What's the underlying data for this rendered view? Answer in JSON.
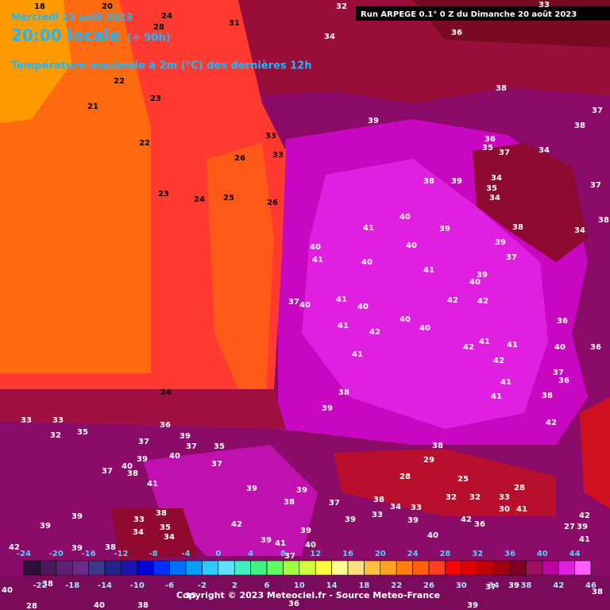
{
  "header": {
    "date": "Mercredi 23 août 2023",
    "time": "20:00 locale",
    "lead": "(+ 90h)",
    "subtitle": "Température maximale à 2m (°C) des dernières 12h",
    "run": "Run ARPEGE 0.1° 0 Z du Dimanche 20 août 2023"
  },
  "map_labels": [
    18,
    20,
    24,
    28,
    31,
    32,
    34,
    36,
    33,
    22,
    21,
    23,
    22,
    23,
    24,
    25,
    26,
    33,
    33,
    26,
    39,
    38,
    38,
    37,
    36,
    35,
    37,
    34,
    34,
    35,
    34,
    38,
    39,
    40,
    41,
    40,
    39,
    39,
    38,
    37,
    34,
    38,
    37,
    40,
    41,
    40,
    41,
    40,
    39,
    42,
    42,
    41,
    40,
    41,
    42,
    40,
    40,
    42,
    41,
    41,
    40,
    36,
    42,
    41,
    41,
    41,
    38,
    36,
    37,
    36,
    42,
    38,
    39,
    24,
    37,
    33,
    33,
    32,
    35,
    36,
    39,
    37,
    37,
    35,
    40,
    39,
    37,
    40,
    38,
    41,
    37,
    38,
    29,
    28,
    25,
    39,
    39,
    38,
    37,
    38,
    34,
    33,
    32,
    32,
    33,
    28,
    39,
    33,
    38,
    35,
    34,
    34,
    42,
    39,
    33,
    39,
    42,
    36,
    30,
    41,
    27,
    42,
    39,
    39,
    40,
    39,
    41,
    42,
    39,
    39,
    38,
    37,
    40,
    41,
    40,
    38,
    40,
    38,
    35,
    36,
    39,
    37,
    39,
    38,
    28,
    40
  ],
  "legend": {
    "ticks": [
      -24,
      -22,
      -20,
      -18,
      -16,
      -14,
      -12,
      -10,
      -8,
      -6,
      -4,
      -2,
      0,
      2,
      4,
      6,
      8,
      10,
      12,
      14,
      16,
      18,
      20,
      22,
      24,
      26,
      28,
      30,
      32,
      34,
      36,
      38,
      40,
      42,
      44,
      46
    ],
    "colors": [
      "#2e0f3a",
      "#4b1a5a",
      "#5e2275",
      "#6b2a88",
      "#3a3a8a",
      "#23238c",
      "#1818b0",
      "#0000d8",
      "#0030ff",
      "#0070ff",
      "#00a0ff",
      "#30c8ff",
      "#60e0ff",
      "#40f0c0",
      "#40f080",
      "#60ff60",
      "#a0ff40",
      "#d0ff40",
      "#ffff40",
      "#ffff90",
      "#ffe080",
      "#ffc040",
      "#ffa020",
      "#ff8010",
      "#ff6010",
      "#ff4020",
      "#ff0000",
      "#e00000",
      "#c00000",
      "#a00010",
      "#800020",
      "#a01060",
      "#c000a0",
      "#e020e0",
      "#ff60ff"
    ]
  },
  "footer": "Copyright © 2023 Meteociel.fr - Source Meteo-France"
}
